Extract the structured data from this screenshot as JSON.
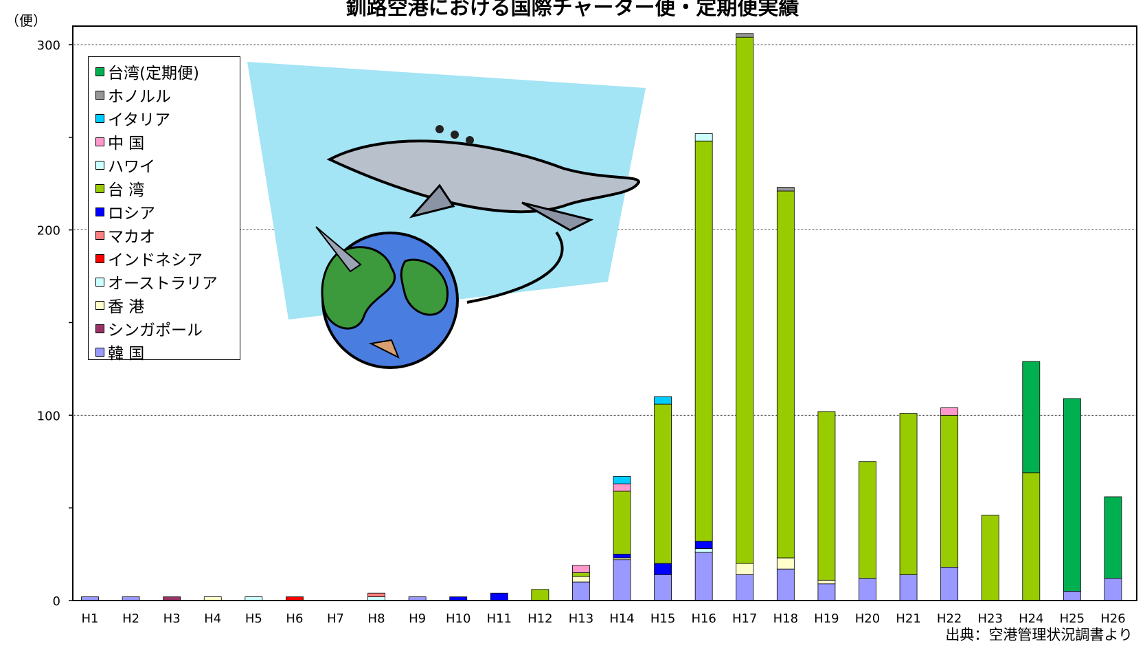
{
  "chart_data": {
    "type": "bar",
    "stacked": true,
    "title": "釧路空港における国際チャーター便・定期便実績",
    "ylabel": "（便）",
    "source": "出典：空港管理状況調書より",
    "ylim": [
      0,
      310
    ],
    "yticks": [
      0,
      100,
      200,
      300
    ],
    "grid": true,
    "legend_position": "top-left",
    "categories": [
      "H1",
      "H2",
      "H3",
      "H4",
      "H5",
      "H6",
      "H7",
      "H8",
      "H9",
      "H10",
      "H11",
      "H12",
      "H13",
      "H14",
      "H15",
      "H16",
      "H17",
      "H18",
      "H19",
      "H20",
      "H21",
      "H22",
      "H23",
      "H24",
      "H25",
      "H26"
    ],
    "series": [
      {
        "name": "韓 国",
        "color": "#9999ff",
        "values": [
          2,
          2,
          0,
          0,
          0,
          0,
          0,
          0,
          2,
          0,
          0,
          0,
          10,
          22,
          14,
          26,
          14,
          17,
          9,
          12,
          14,
          18,
          0,
          0,
          5,
          12
        ]
      },
      {
        "name": "シンガポール",
        "color": "#993366",
        "values": [
          0,
          0,
          2,
          0,
          0,
          0,
          0,
          0,
          0,
          0,
          0,
          0,
          0,
          0,
          0,
          0,
          0,
          0,
          0,
          0,
          0,
          0,
          0,
          0,
          0,
          0
        ]
      },
      {
        "name": "香 港",
        "color": "#ffffcc",
        "values": [
          0,
          0,
          0,
          2,
          0,
          0,
          0,
          0,
          0,
          0,
          0,
          0,
          3,
          1,
          0,
          0,
          6,
          6,
          2,
          0,
          0,
          0,
          0,
          0,
          0,
          0
        ]
      },
      {
        "name": "オーストラリア",
        "color": "#ccffff",
        "values": [
          0,
          0,
          0,
          0,
          2,
          0,
          0,
          2,
          0,
          0,
          0,
          0,
          0,
          0,
          0,
          2,
          0,
          0,
          0,
          0,
          0,
          0,
          0,
          0,
          0,
          0
        ]
      },
      {
        "name": "インドネシア",
        "color": "#ff0000",
        "values": [
          0,
          0,
          0,
          0,
          0,
          2,
          0,
          0,
          0,
          0,
          0,
          0,
          0,
          0,
          0,
          0,
          0,
          0,
          0,
          0,
          0,
          0,
          0,
          0,
          0,
          0
        ]
      },
      {
        "name": "マカオ",
        "color": "#ff8080",
        "values": [
          0,
          0,
          0,
          0,
          0,
          0,
          0,
          2,
          0,
          0,
          0,
          0,
          0,
          0,
          0,
          0,
          0,
          0,
          0,
          0,
          0,
          0,
          0,
          0,
          0,
          0
        ]
      },
      {
        "name": "ロシア",
        "color": "#0000ff",
        "values": [
          0,
          0,
          0,
          0,
          0,
          0,
          0,
          0,
          0,
          2,
          4,
          0,
          0,
          2,
          6,
          4,
          0,
          0,
          0,
          0,
          0,
          0,
          0,
          0,
          0,
          0
        ]
      },
      {
        "name": "台 湾",
        "color": "#99cc00",
        "values": [
          0,
          0,
          0,
          0,
          0,
          0,
          0,
          0,
          0,
          0,
          0,
          6,
          2,
          34,
          86,
          216,
          284,
          198,
          91,
          63,
          87,
          82,
          46,
          69,
          0,
          0
        ]
      },
      {
        "name": "ハワイ",
        "color": "#ccffff",
        "values": [
          0,
          0,
          0,
          0,
          0,
          0,
          0,
          0,
          0,
          0,
          0,
          0,
          0,
          0,
          0,
          4,
          0,
          0,
          0,
          0,
          0,
          0,
          0,
          0,
          0,
          0
        ]
      },
      {
        "name": "中 国",
        "color": "#ff99cc",
        "values": [
          0,
          0,
          0,
          0,
          0,
          0,
          0,
          0,
          0,
          0,
          0,
          0,
          4,
          4,
          0,
          0,
          0,
          0,
          0,
          0,
          0,
          4,
          0,
          0,
          0,
          0
        ]
      },
      {
        "name": "イタリア",
        "color": "#00ccff",
        "values": [
          0,
          0,
          0,
          0,
          0,
          0,
          0,
          0,
          0,
          0,
          0,
          0,
          0,
          4,
          4,
          0,
          0,
          0,
          0,
          0,
          0,
          0,
          0,
          0,
          0,
          0
        ]
      },
      {
        "name": "ホノルル",
        "color": "#969696",
        "values": [
          0,
          0,
          0,
          0,
          0,
          0,
          0,
          0,
          0,
          0,
          0,
          0,
          0,
          0,
          0,
          0,
          2,
          2,
          0,
          0,
          0,
          0,
          0,
          0,
          0,
          0
        ]
      },
      {
        "name": "台湾(定期便)",
        "color": "#00b050",
        "values": [
          0,
          0,
          0,
          0,
          0,
          0,
          0,
          0,
          0,
          0,
          0,
          0,
          0,
          0,
          0,
          0,
          0,
          0,
          0,
          0,
          0,
          0,
          0,
          60,
          104,
          44
        ]
      }
    ],
    "legend_order": [
      "台湾(定期便)",
      "ホノルル",
      "イタリア",
      "中 国",
      "ハワイ",
      "台 湾",
      "ロシア",
      "マカオ",
      "インドネシア",
      "オーストラリア",
      "香 港",
      "シンガポール",
      "韓 国"
    ]
  }
}
